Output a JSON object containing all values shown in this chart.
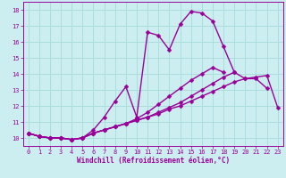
{
  "xlabel": "Windchill (Refroidissement éolien,°C)",
  "xlim": [
    -0.5,
    23.5
  ],
  "ylim": [
    9.5,
    18.5
  ],
  "xticks": [
    0,
    1,
    2,
    3,
    4,
    5,
    6,
    7,
    8,
    9,
    10,
    11,
    12,
    13,
    14,
    15,
    16,
    17,
    18,
    19,
    20,
    21,
    22,
    23
  ],
  "yticks": [
    10,
    11,
    12,
    13,
    14,
    15,
    16,
    17,
    18
  ],
  "background_color": "#cceef0",
  "grid_color": "#aadddd",
  "line_color": "#990099",
  "line_width": 1.0,
  "marker": "D",
  "marker_size": 2.5,
  "series": [
    [
      10.3,
      10.1,
      10.0,
      10.0,
      9.9,
      10.0,
      10.5,
      11.3,
      12.3,
      13.2,
      11.3,
      16.6,
      16.4,
      15.5,
      17.1,
      17.9,
      17.8,
      17.3,
      15.7,
      14.1,
      13.7,
      13.7,
      13.1,
      null
    ],
    [
      10.3,
      10.1,
      10.0,
      10.0,
      9.9,
      10.0,
      10.3,
      10.5,
      10.7,
      10.9,
      11.1,
      11.3,
      11.5,
      11.8,
      12.0,
      12.3,
      12.6,
      12.9,
      13.2,
      13.5,
      13.7,
      13.8,
      13.9,
      11.9
    ],
    [
      10.3,
      10.1,
      10.0,
      10.0,
      9.9,
      10.0,
      10.3,
      10.5,
      10.7,
      10.9,
      11.1,
      11.3,
      11.6,
      11.9,
      12.2,
      12.6,
      13.0,
      13.4,
      13.8,
      14.1,
      null,
      null,
      null,
      null
    ],
    [
      10.3,
      10.1,
      10.0,
      10.0,
      9.9,
      10.0,
      10.3,
      10.5,
      10.7,
      10.9,
      11.2,
      11.6,
      12.1,
      12.6,
      13.1,
      13.6,
      14.0,
      14.4,
      14.1,
      null,
      null,
      null,
      null,
      null
    ]
  ]
}
